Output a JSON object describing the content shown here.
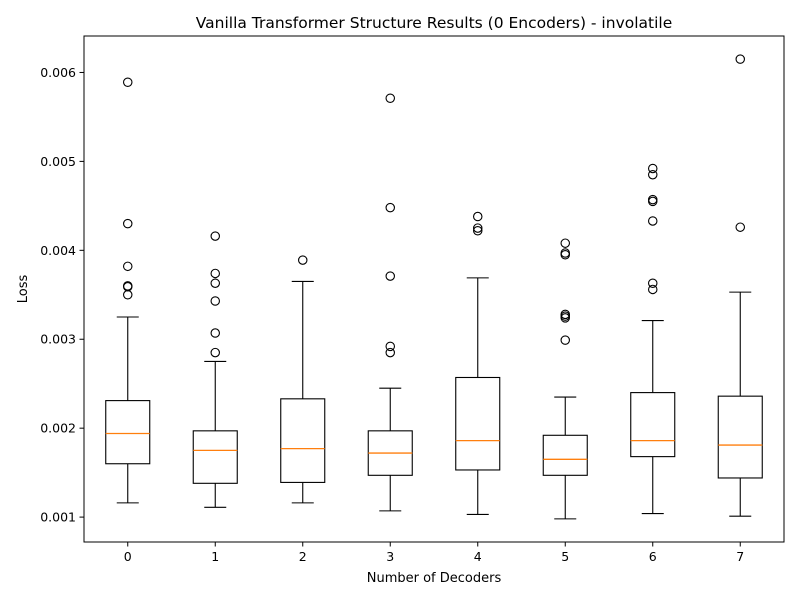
{
  "chart_data": {
    "type": "box",
    "title": "Vanilla Transformer Structure Results (0 Encoders) - involatile",
    "xlabel": "Number of Decoders",
    "ylabel": "Loss",
    "ylim": [
      0.00072,
      0.00641
    ],
    "yticks": [
      0.001,
      0.002,
      0.003,
      0.004,
      0.005,
      0.006
    ],
    "ytick_labels": [
      "0.001",
      "0.002",
      "0.003",
      "0.004",
      "0.005",
      "0.006"
    ],
    "categories": [
      "0",
      "1",
      "2",
      "3",
      "4",
      "5",
      "6",
      "7"
    ],
    "grid": false,
    "boxes": [
      {
        "category": "0",
        "whisker_low": 0.00116,
        "q1": 0.0016,
        "median": 0.00194,
        "q3": 0.00231,
        "whisker_high": 0.00325,
        "outliers": [
          0.00589,
          0.0043,
          0.00382,
          0.0036,
          0.00359,
          0.0035
        ]
      },
      {
        "category": "1",
        "whisker_low": 0.00111,
        "q1": 0.00138,
        "median": 0.00175,
        "q3": 0.00197,
        "whisker_high": 0.00275,
        "outliers": [
          0.00416,
          0.00374,
          0.00363,
          0.00343,
          0.00307,
          0.00285
        ]
      },
      {
        "category": "2",
        "whisker_low": 0.00116,
        "q1": 0.00139,
        "median": 0.00177,
        "q3": 0.00233,
        "whisker_high": 0.00365,
        "outliers": [
          0.00389
        ]
      },
      {
        "category": "3",
        "whisker_low": 0.00107,
        "q1": 0.00147,
        "median": 0.00172,
        "q3": 0.00197,
        "whisker_high": 0.00245,
        "outliers": [
          0.00571,
          0.00448,
          0.00371,
          0.00292,
          0.00285
        ]
      },
      {
        "category": "4",
        "whisker_low": 0.00103,
        "q1": 0.00153,
        "median": 0.00186,
        "q3": 0.00257,
        "whisker_high": 0.00369,
        "outliers": [
          0.00438,
          0.00425,
          0.00422
        ]
      },
      {
        "category": "5",
        "whisker_low": 0.00098,
        "q1": 0.00147,
        "median": 0.00165,
        "q3": 0.00192,
        "whisker_high": 0.00235,
        "outliers": [
          0.00408,
          0.00397,
          0.00395,
          0.00328,
          0.00326,
          0.00324,
          0.00299
        ]
      },
      {
        "category": "6",
        "whisker_low": 0.00104,
        "q1": 0.00168,
        "median": 0.00186,
        "q3": 0.0024,
        "whisker_high": 0.00321,
        "outliers": [
          0.00492,
          0.00485,
          0.00457,
          0.00455,
          0.00433,
          0.00363,
          0.00356
        ]
      },
      {
        "category": "7",
        "whisker_low": 0.00101,
        "q1": 0.00144,
        "median": 0.00181,
        "q3": 0.00236,
        "whisker_high": 0.00353,
        "outliers": [
          0.00615,
          0.00426
        ]
      }
    ]
  },
  "colors": {
    "box_stroke": "#000000",
    "median": "#ff7f0e",
    "background": "#ffffff"
  }
}
